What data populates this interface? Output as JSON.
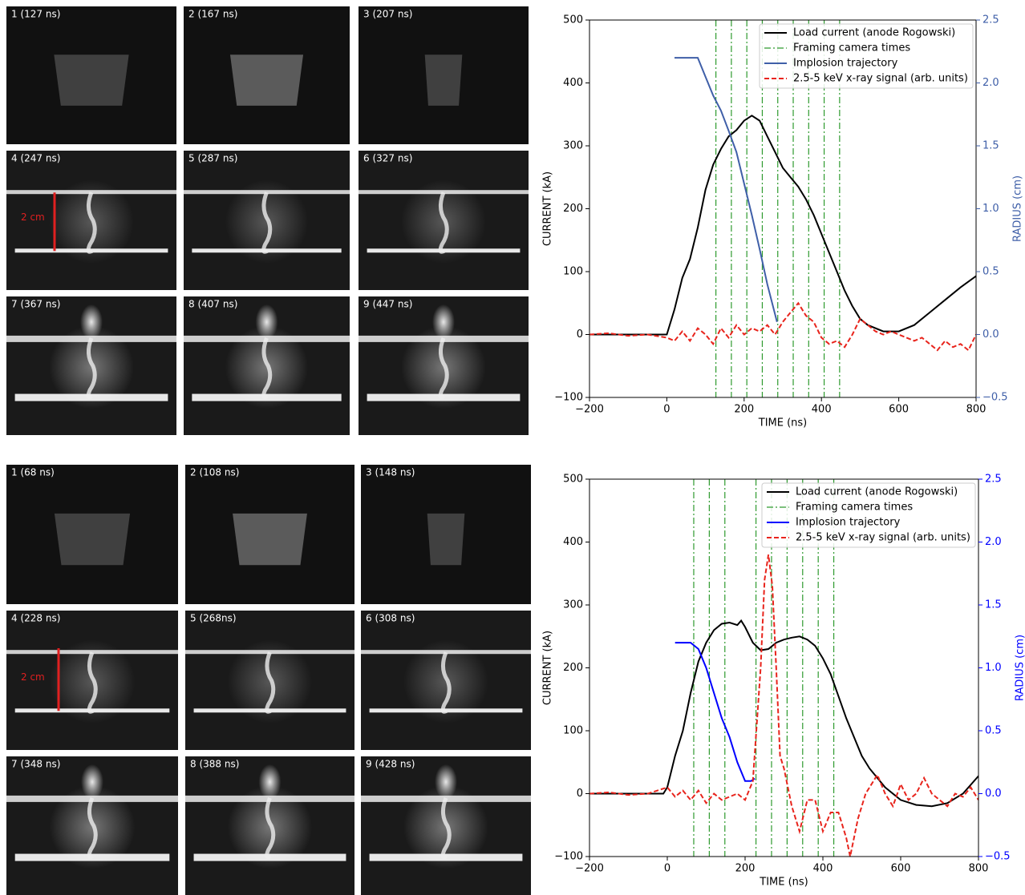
{
  "image_panels": [
    {
      "frames": [
        "1 (127 ns)",
        "2 (167 ns)",
        "3 (207 ns)",
        "4 (247 ns)",
        "5 (287 ns)",
        "6 (327 ns)",
        "7 (367 ns)",
        "8 (407 ns)",
        "9 (447 ns)"
      ],
      "scale_label": "2 cm"
    },
    {
      "frames": [
        "1 (68 ns)",
        "2 (108 ns)",
        "3 (148 ns)",
        "4 (228 ns)",
        "5 (268ns)",
        "6 (308 ns)",
        "7 (348 ns)",
        "8 (388 ns)",
        "9 (428 ns)"
      ],
      "scale_label": "2 cm"
    }
  ],
  "chart_data": [
    {
      "type": "line",
      "xlabel": "TIME (ns)",
      "ylabel": "CURRENT (kA)",
      "y2label": "RADIUS (cm)",
      "xlim": [
        -200,
        800
      ],
      "ylim": [
        -100,
        500
      ],
      "y2lim": [
        -0.5,
        2.5
      ],
      "xticks": [
        {
          "value": -200,
          "label": "−200"
        },
        0,
        200,
        400,
        600,
        800
      ],
      "yticks": [
        {
          "value": -100,
          "label": "−100"
        },
        0,
        100,
        200,
        300,
        400,
        500
      ],
      "y2ticks": [
        {
          "value": -0.5,
          "label": "−0.5"
        },
        {
          "value": 0,
          "label": "0.0"
        },
        {
          "value": 0.5,
          "label": "0.5"
        },
        {
          "value": 1,
          "label": "1.0"
        },
        {
          "value": 1.5,
          "label": "1.5"
        },
        {
          "value": 2,
          "label": "2.0"
        },
        {
          "value": 2.5,
          "label": "2.5"
        }
      ],
      "legend": "upper right",
      "series": [
        {
          "name": "Load current (anode Rogowski)",
          "color": "#000000",
          "style": "solid",
          "x": [
            -200,
            -100,
            0,
            20,
            40,
            60,
            80,
            100,
            120,
            140,
            160,
            180,
            200,
            220,
            240,
            260,
            280,
            300,
            320,
            340,
            360,
            380,
            400,
            420,
            440,
            460,
            480,
            500,
            520,
            560,
            600,
            640,
            680,
            720,
            760,
            800
          ],
          "values": [
            0,
            0,
            0,
            40,
            90,
            120,
            170,
            230,
            270,
            295,
            315,
            325,
            340,
            348,
            340,
            315,
            290,
            265,
            250,
            235,
            215,
            190,
            160,
            130,
            100,
            70,
            45,
            25,
            15,
            5,
            5,
            15,
            35,
            55,
            75,
            93
          ]
        },
        {
          "name": "Implosion trajectory",
          "color": "#3f5fa8",
          "style": "solid",
          "axis": "y2",
          "x": [
            20,
            40,
            60,
            80,
            100,
            120,
            140,
            160,
            180,
            200,
            220,
            240,
            260,
            285
          ],
          "values": [
            2.2,
            2.2,
            2.2,
            2.2,
            2.05,
            1.9,
            1.78,
            1.62,
            1.45,
            1.2,
            0.95,
            0.68,
            0.4,
            0.1
          ]
        },
        {
          "name": "2.5-5 keV x-ray signal (arb. units)",
          "color": "#e8241c",
          "style": "dashed",
          "x": [
            -200,
            -150,
            -100,
            -50,
            0,
            20,
            40,
            60,
            80,
            100,
            120,
            140,
            160,
            180,
            200,
            220,
            240,
            260,
            280,
            300,
            320,
            340,
            360,
            380,
            400,
            420,
            440,
            460,
            480,
            500,
            520,
            540,
            560,
            580,
            600,
            620,
            640,
            660,
            680,
            700,
            720,
            740,
            760,
            780,
            800
          ],
          "values": [
            0,
            2,
            -2,
            0,
            -5,
            -10,
            5,
            -10,
            10,
            0,
            -15,
            10,
            -5,
            15,
            0,
            10,
            5,
            15,
            0,
            20,
            35,
            50,
            30,
            20,
            -5,
            -15,
            -10,
            -20,
            0,
            25,
            15,
            5,
            0,
            5,
            0,
            -5,
            -10,
            -5,
            -15,
            -25,
            -10,
            -20,
            -15,
            -25,
            0
          ]
        }
      ],
      "vlines": {
        "name": "Framing camera times",
        "color": "#2e9a2e",
        "x": [
          127,
          167,
          207,
          247,
          287,
          327,
          367,
          407,
          447
        ]
      }
    },
    {
      "type": "line",
      "xlabel": "TIME (ns)",
      "ylabel": "CURRENT (kA)",
      "y2label": "RADIUS (cm)",
      "xlim": [
        -200,
        800
      ],
      "ylim": [
        -100,
        500
      ],
      "y2lim": [
        -0.5,
        2.5
      ],
      "xticks": [
        {
          "value": -200,
          "label": "−200"
        },
        0,
        200,
        400,
        600,
        800
      ],
      "yticks": [
        {
          "value": -100,
          "label": "−100"
        },
        0,
        100,
        200,
        300,
        400,
        500
      ],
      "y2ticks": [
        {
          "value": -0.5,
          "label": "−0.5"
        },
        {
          "value": 0,
          "label": "0.0"
        },
        {
          "value": 0.5,
          "label": "0.5"
        },
        {
          "value": 1,
          "label": "1.0"
        },
        {
          "value": 1.5,
          "label": "1.5"
        },
        {
          "value": 2,
          "label": "2.0"
        },
        {
          "value": 2.5,
          "label": "2.5"
        }
      ],
      "legend": "upper right",
      "series": [
        {
          "name": "Load current (anode Rogowski)",
          "color": "#000000",
          "style": "solid",
          "x": [
            -200,
            -100,
            -10,
            0,
            20,
            40,
            60,
            80,
            100,
            120,
            140,
            160,
            180,
            190,
            200,
            220,
            240,
            260,
            280,
            300,
            320,
            340,
            360,
            380,
            400,
            420,
            440,
            460,
            480,
            500,
            520,
            540,
            560,
            600,
            640,
            680,
            720,
            760,
            800
          ],
          "values": [
            0,
            0,
            0,
            10,
            60,
            100,
            160,
            210,
            240,
            260,
            270,
            272,
            268,
            275,
            265,
            240,
            228,
            230,
            240,
            245,
            248,
            250,
            245,
            235,
            215,
            190,
            155,
            120,
            90,
            60,
            40,
            25,
            10,
            -10,
            -18,
            -20,
            -15,
            0,
            28
          ]
        },
        {
          "name": "Implosion trajectory",
          "color": "#0000ff",
          "style": "solid",
          "axis": "y2",
          "x": [
            20,
            40,
            60,
            80,
            100,
            120,
            140,
            160,
            180,
            200,
            215,
            225
          ],
          "values": [
            1.2,
            1.2,
            1.2,
            1.15,
            1.0,
            0.8,
            0.6,
            0.45,
            0.25,
            0.1,
            0.1,
            0.12
          ]
        },
        {
          "name": "2.5-5 keV x-ray signal (arb. units)",
          "color": "#e8241c",
          "style": "dashed",
          "x": [
            -200,
            -150,
            -100,
            -50,
            0,
            20,
            40,
            60,
            80,
            100,
            120,
            140,
            160,
            180,
            200,
            220,
            240,
            250,
            260,
            270,
            280,
            290,
            300,
            320,
            340,
            360,
            380,
            400,
            420,
            440,
            460,
            470,
            490,
            510,
            540,
            560,
            580,
            600,
            620,
            640,
            660,
            680,
            700,
            720,
            740,
            760,
            780,
            800
          ],
          "values": [
            0,
            2,
            -2,
            0,
            10,
            -5,
            5,
            -10,
            5,
            -15,
            0,
            -10,
            -5,
            0,
            -10,
            20,
            200,
            340,
            380,
            330,
            200,
            60,
            40,
            -20,
            -60,
            -10,
            -10,
            -60,
            -30,
            -30,
            -70,
            -100,
            -40,
            0,
            30,
            0,
            -20,
            15,
            -10,
            0,
            25,
            0,
            -10,
            -20,
            0,
            -5,
            10,
            -10
          ]
        }
      ],
      "vlines": {
        "name": "Framing camera times",
        "color": "#2e9a2e",
        "x": [
          68,
          108,
          148,
          228,
          268,
          308,
          348,
          388,
          428
        ]
      }
    }
  ]
}
